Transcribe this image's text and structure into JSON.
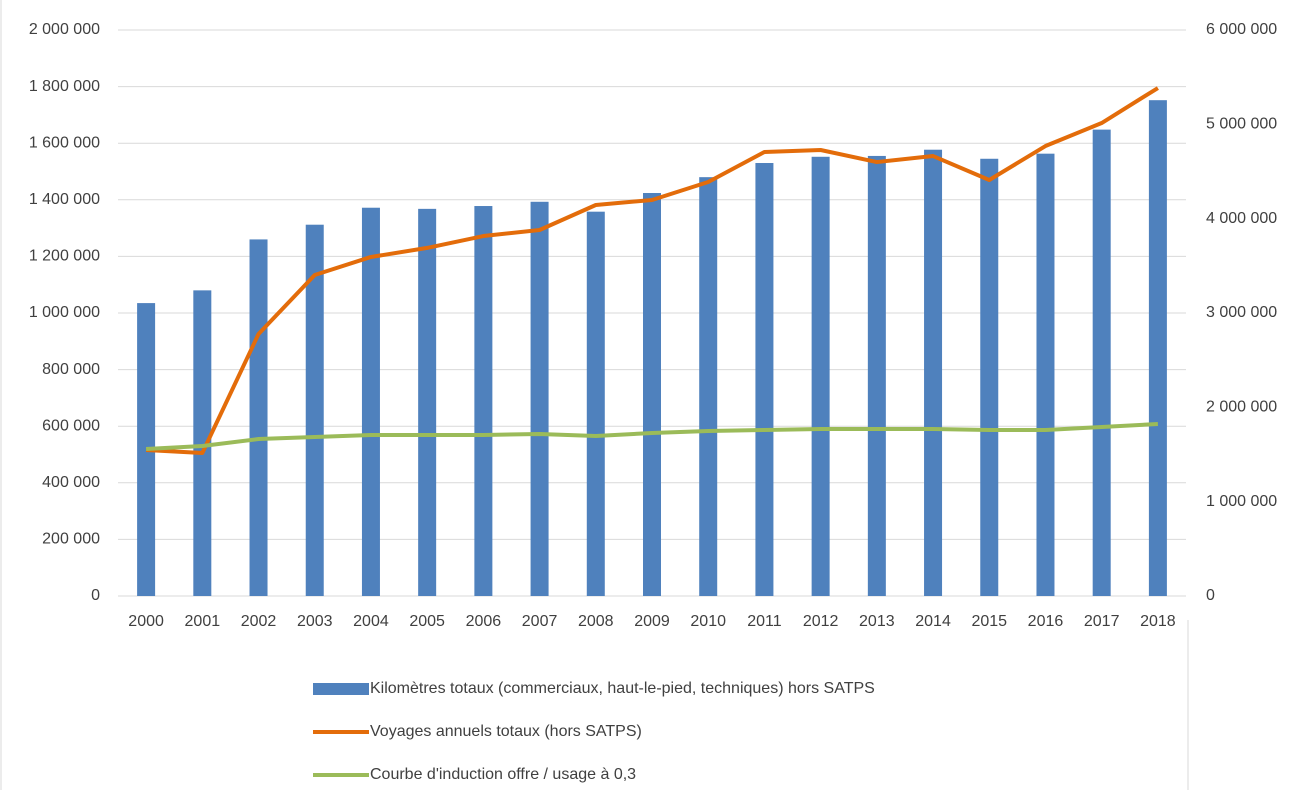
{
  "chart_data": {
    "type": "bar_line",
    "categories": [
      "2000",
      "2001",
      "2002",
      "2003",
      "2004",
      "2005",
      "2006",
      "2007",
      "2008",
      "2009",
      "2010",
      "2011",
      "2012",
      "2013",
      "2014",
      "2015",
      "2016",
      "2017",
      "2018"
    ],
    "series": [
      {
        "name": "Kilomètres totaux (commerciaux, haut-le-pied, techniques) hors SATPS",
        "type": "bar",
        "color": "#4f81bd",
        "values": [
          1035000,
          1080000,
          1260000,
          1312000,
          1372000,
          1368000,
          1378000,
          1393000,
          1358000,
          1424000,
          1480000,
          1530000,
          1552000,
          1555000,
          1577000,
          1545000,
          1563000,
          1648000,
          1752000
        ]
      },
      {
        "name": "Voyages annuels totaux (hors SATPS)",
        "type": "line",
        "axis": "y2",
        "color": "#e36c0a",
        "values": [
          1548000,
          1516000,
          2777000,
          3403000,
          3594000,
          3690000,
          3816000,
          3880000,
          4145000,
          4198000,
          4389000,
          4707000,
          4728000,
          4600000,
          4664000,
          4410000,
          4770000,
          5014000,
          5385000
        ]
      },
      {
        "name": "Courbe d'induction offre / usage à 0,3",
        "type": "line",
        "axis": "y2",
        "color": "#9bbb59",
        "values": [
          1558000,
          1590000,
          1664000,
          1685000,
          1707000,
          1707000,
          1707000,
          1717000,
          1696000,
          1728000,
          1749000,
          1760000,
          1770000,
          1770000,
          1770000,
          1760000,
          1760000,
          1792000,
          1823000
        ]
      }
    ],
    "ylim": [
      0,
      2000000
    ],
    "yticks": [
      0,
      {
        "value": 200000,
        "label": "200 000"
      },
      {
        "value": 400000,
        "label": "400 000"
      },
      {
        "value": 600000,
        "label": "600 000"
      },
      {
        "value": 800000,
        "label": "800 000"
      },
      {
        "value": 1000000,
        "label": "1 000 000"
      },
      {
        "value": 1200000,
        "label": "1 200 000"
      },
      {
        "value": 1400000,
        "label": "1 400 000"
      },
      {
        "value": 1600000,
        "label": "1 600 000"
      },
      {
        "value": 1800000,
        "label": "1 800 000"
      },
      {
        "value": 2000000,
        "label": "2 000 000"
      }
    ],
    "y2lim": [
      0,
      6000000
    ],
    "y2ticks": [
      0,
      {
        "value": 1000000,
        "label": "1 000 000"
      },
      {
        "value": 2000000,
        "label": "2 000 000"
      },
      {
        "value": 3000000,
        "label": "3 000 000"
      },
      {
        "value": 4000000,
        "label": "4 000 000"
      },
      {
        "value": 5000000,
        "label": "5 000 000"
      },
      {
        "value": 6000000,
        "label": "6 000 000"
      }
    ],
    "grid": true,
    "legend": "bottom"
  }
}
